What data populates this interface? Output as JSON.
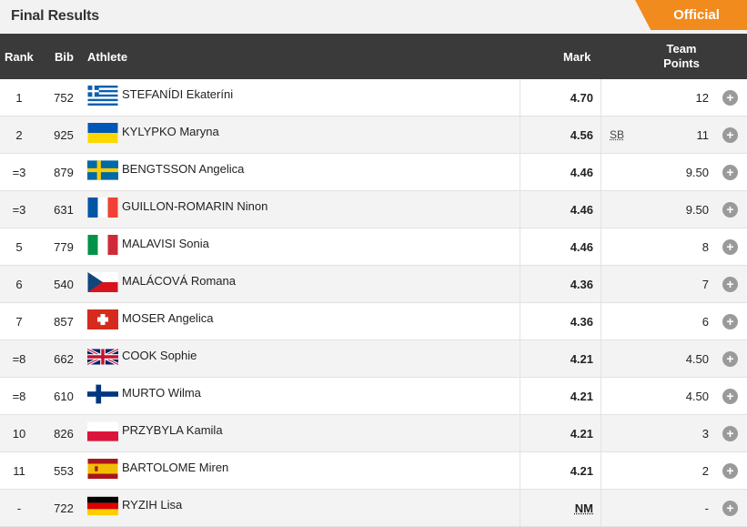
{
  "header": {
    "title": "Final Results",
    "status_badge": "Official"
  },
  "columns": {
    "rank": "Rank",
    "bib": "Bib",
    "athlete": "Athlete",
    "mark": "Mark",
    "team_points_line1": "Team",
    "team_points_line2": "Points"
  },
  "rows": [
    {
      "rank": "1",
      "bib": "752",
      "country": "greece",
      "name": "STEFANÍDI Ekateríni",
      "mark": "4.70",
      "note": "",
      "points": "12"
    },
    {
      "rank": "2",
      "bib": "925",
      "country": "ukraine",
      "name": "KYLYPKO Maryna",
      "mark": "4.56",
      "note": "SB",
      "points": "11"
    },
    {
      "rank": "=3",
      "bib": "879",
      "country": "sweden",
      "name": "BENGTSSON Angelica",
      "mark": "4.46",
      "note": "",
      "points": "9.50"
    },
    {
      "rank": "=3",
      "bib": "631",
      "country": "france",
      "name": "GUILLON-ROMARIN Ninon",
      "mark": "4.46",
      "note": "",
      "points": "9.50"
    },
    {
      "rank": "5",
      "bib": "779",
      "country": "italy",
      "name": "MALAVISI Sonia",
      "mark": "4.46",
      "note": "",
      "points": "8"
    },
    {
      "rank": "6",
      "bib": "540",
      "country": "czechia",
      "name": "MALÁCOVÁ Romana",
      "mark": "4.36",
      "note": "",
      "points": "7"
    },
    {
      "rank": "7",
      "bib": "857",
      "country": "switzerland",
      "name": "MOSER Angelica",
      "mark": "4.36",
      "note": "",
      "points": "6"
    },
    {
      "rank": "=8",
      "bib": "662",
      "country": "great-britain",
      "name": "COOK Sophie",
      "mark": "4.21",
      "note": "",
      "points": "4.50"
    },
    {
      "rank": "=8",
      "bib": "610",
      "country": "finland",
      "name": "MURTO Wilma",
      "mark": "4.21",
      "note": "",
      "points": "4.50"
    },
    {
      "rank": "10",
      "bib": "826",
      "country": "poland",
      "name": "PRZYBYLA Kamila",
      "mark": "4.21",
      "note": "",
      "points": "3"
    },
    {
      "rank": "11",
      "bib": "553",
      "country": "spain",
      "name": "BARTOLOME Miren",
      "mark": "4.21",
      "note": "",
      "points": "2"
    },
    {
      "rank": "-",
      "bib": "722",
      "country": "germany",
      "name": "RYZIH Lisa",
      "mark": "NM",
      "note": "",
      "points": "-"
    }
  ],
  "icons": {
    "expand": "plus-circle-icon",
    "expand_glyph": "+"
  }
}
